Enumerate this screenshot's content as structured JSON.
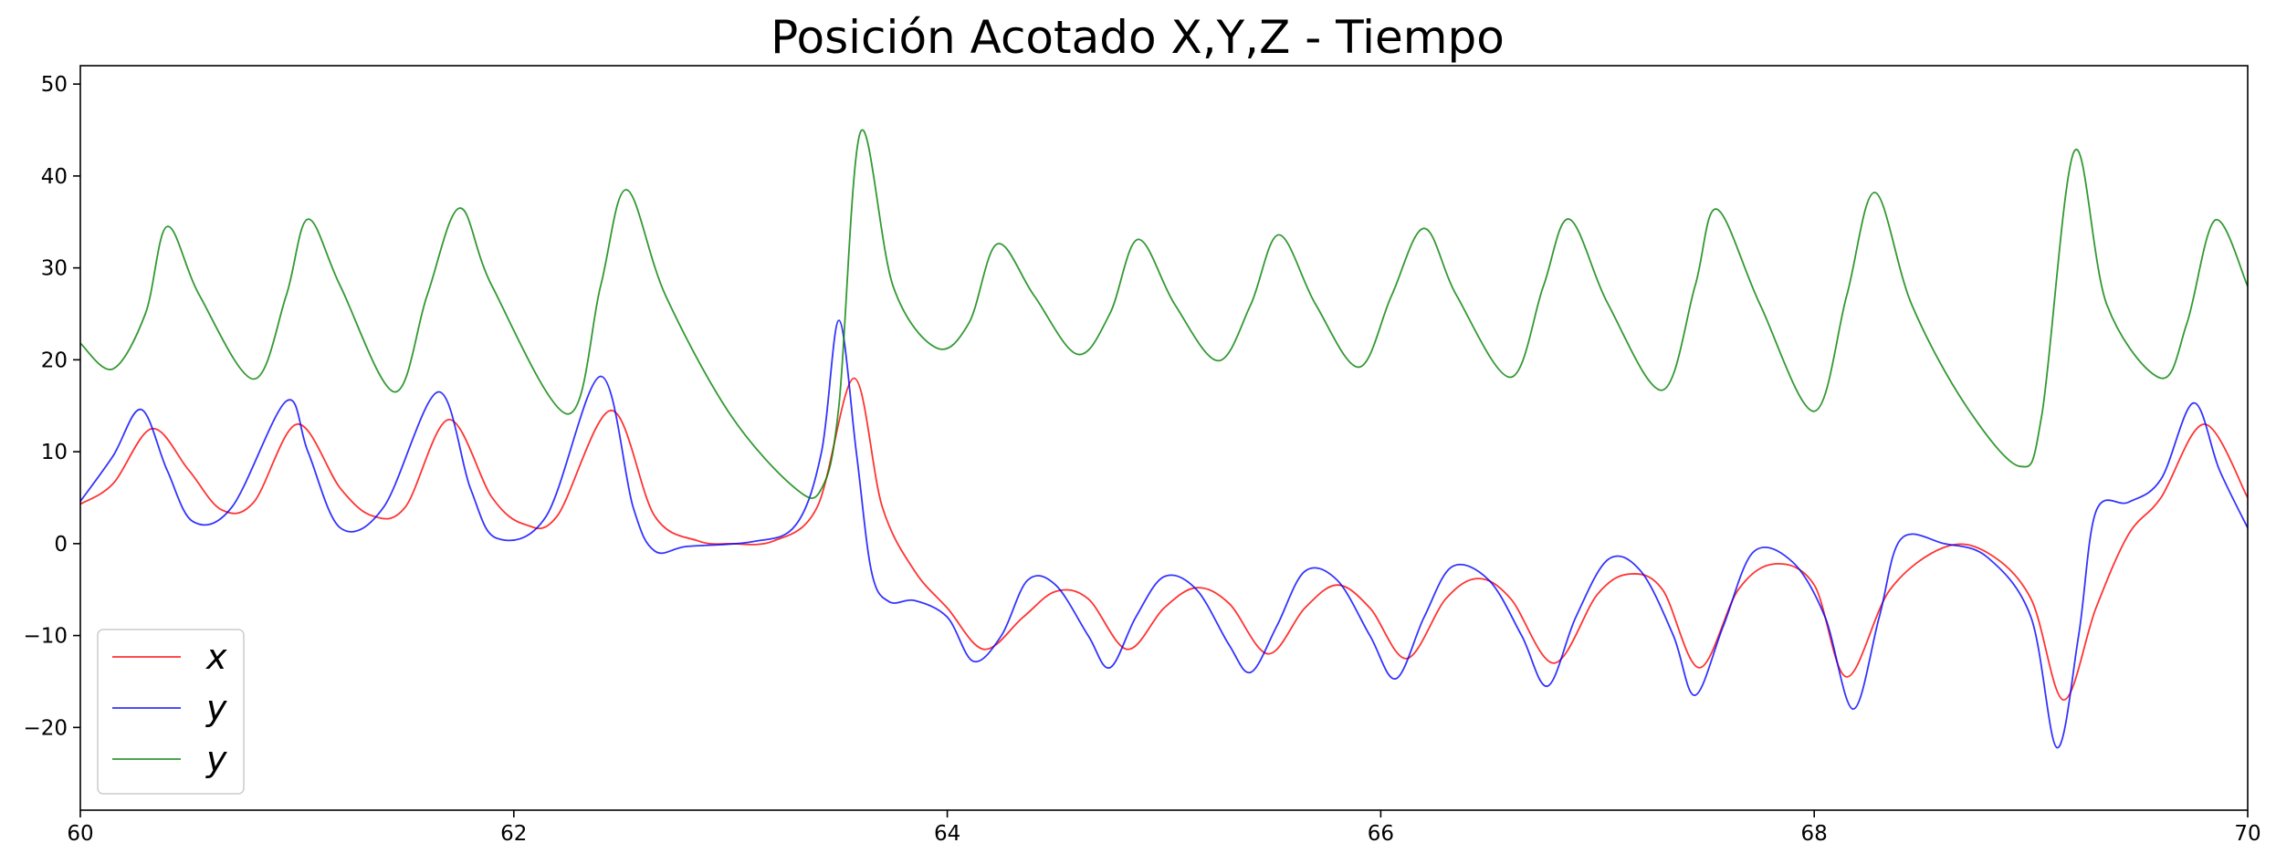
{
  "chart_data": {
    "type": "line",
    "title": "Posición Acotado X,Y,Z - Tiempo",
    "xlabel": "",
    "ylabel": "",
    "xlim": [
      60,
      70
    ],
    "ylim": [
      -29,
      52
    ],
    "xticks": [
      60,
      62,
      64,
      66,
      68,
      70
    ],
    "yticks": [
      -20,
      -10,
      0,
      10,
      20,
      30,
      40,
      50
    ],
    "xtick_labels": [
      "60",
      "62",
      "64",
      "66",
      "68",
      "70"
    ],
    "ytick_labels": [
      "−20",
      "−10",
      "0",
      "10",
      "20",
      "30",
      "40",
      "50"
    ],
    "grid": false,
    "legend_position": "lower-left",
    "series": [
      {
        "name": "x",
        "color": "#ff0000",
        "points": [
          [
            60,
            4.3
          ],
          [
            60.15,
            6.5
          ],
          [
            60.33,
            12.5
          ],
          [
            60.5,
            8
          ],
          [
            60.65,
            3.7
          ],
          [
            60.8,
            4.5
          ],
          [
            61.0,
            13
          ],
          [
            61.2,
            6
          ],
          [
            61.35,
            3.0
          ],
          [
            61.5,
            4
          ],
          [
            61.7,
            13.5
          ],
          [
            61.9,
            5
          ],
          [
            62.05,
            2.1
          ],
          [
            62.2,
            3
          ],
          [
            62.45,
            14.5
          ],
          [
            62.65,
            3
          ],
          [
            62.85,
            0.3
          ],
          [
            63.0,
            0
          ],
          [
            63.2,
            0.3
          ],
          [
            63.4,
            4
          ],
          [
            63.57,
            18
          ],
          [
            63.7,
            4
          ],
          [
            63.85,
            -3
          ],
          [
            64.0,
            -7
          ],
          [
            64.17,
            -11.5
          ],
          [
            64.35,
            -8
          ],
          [
            64.5,
            -5.2
          ],
          [
            64.65,
            -6
          ],
          [
            64.83,
            -11.5
          ],
          [
            65.0,
            -7
          ],
          [
            65.15,
            -4.8
          ],
          [
            65.3,
            -6.5
          ],
          [
            65.48,
            -12
          ],
          [
            65.65,
            -7
          ],
          [
            65.8,
            -4.5
          ],
          [
            65.95,
            -7
          ],
          [
            66.12,
            -12.5
          ],
          [
            66.3,
            -6
          ],
          [
            66.45,
            -3.8
          ],
          [
            66.6,
            -6
          ],
          [
            66.8,
            -13
          ],
          [
            67.0,
            -5.5
          ],
          [
            67.15,
            -3.3
          ],
          [
            67.3,
            -5
          ],
          [
            67.47,
            -13.5
          ],
          [
            67.65,
            -5
          ],
          [
            67.82,
            -2.2
          ],
          [
            68.0,
            -4.5
          ],
          [
            68.15,
            -14.5
          ],
          [
            68.35,
            -5
          ],
          [
            68.6,
            -0.4
          ],
          [
            68.8,
            -1
          ],
          [
            69.0,
            -6
          ],
          [
            69.15,
            -17
          ],
          [
            69.3,
            -7
          ],
          [
            69.45,
            1
          ],
          [
            69.6,
            5
          ],
          [
            69.8,
            13
          ],
          [
            70.0,
            5
          ]
        ]
      },
      {
        "name": "y",
        "color": "#0000ff",
        "points": [
          [
            60,
            4.6
          ],
          [
            60.15,
            9.5
          ],
          [
            60.28,
            14.6
          ],
          [
            60.4,
            8
          ],
          [
            60.52,
            2.4
          ],
          [
            60.7,
            4
          ],
          [
            60.95,
            15.5
          ],
          [
            61.05,
            10
          ],
          [
            61.2,
            1.7
          ],
          [
            61.4,
            4
          ],
          [
            61.65,
            16.5
          ],
          [
            61.8,
            6
          ],
          [
            61.92,
            0.6
          ],
          [
            62.15,
            3
          ],
          [
            62.4,
            18.2
          ],
          [
            62.55,
            4
          ],
          [
            62.65,
            -0.8
          ],
          [
            62.8,
            -0.3
          ],
          [
            63.1,
            0.2
          ],
          [
            63.3,
            2
          ],
          [
            63.42,
            10
          ],
          [
            63.5,
            24.3
          ],
          [
            63.58,
            10
          ],
          [
            63.65,
            -3
          ],
          [
            63.73,
            -6.3
          ],
          [
            63.85,
            -6.2
          ],
          [
            64.0,
            -8
          ],
          [
            64.12,
            -12.8
          ],
          [
            64.25,
            -10
          ],
          [
            64.37,
            -4
          ],
          [
            64.5,
            -4.5
          ],
          [
            64.65,
            -10
          ],
          [
            64.75,
            -13.5
          ],
          [
            64.87,
            -8
          ],
          [
            65.0,
            -3.6
          ],
          [
            65.15,
            -5
          ],
          [
            65.3,
            -11
          ],
          [
            65.4,
            -14
          ],
          [
            65.52,
            -9
          ],
          [
            65.65,
            -3
          ],
          [
            65.8,
            -4
          ],
          [
            65.95,
            -10
          ],
          [
            66.07,
            -14.7
          ],
          [
            66.2,
            -8
          ],
          [
            66.33,
            -2.5
          ],
          [
            66.5,
            -4
          ],
          [
            66.65,
            -10
          ],
          [
            66.77,
            -15.5
          ],
          [
            66.9,
            -8
          ],
          [
            67.05,
            -1.7
          ],
          [
            67.2,
            -3
          ],
          [
            67.35,
            -10
          ],
          [
            67.45,
            -16.5
          ],
          [
            67.58,
            -9
          ],
          [
            67.72,
            -0.9
          ],
          [
            67.9,
            -2
          ],
          [
            68.05,
            -8
          ],
          [
            68.18,
            -18
          ],
          [
            68.3,
            -8
          ],
          [
            68.4,
            0.5
          ],
          [
            68.6,
            0
          ],
          [
            68.8,
            -1.5
          ],
          [
            69.0,
            -8
          ],
          [
            69.12,
            -22.2
          ],
          [
            69.22,
            -10
          ],
          [
            69.3,
            3.5
          ],
          [
            69.45,
            4.5
          ],
          [
            69.6,
            7
          ],
          [
            69.75,
            15.3
          ],
          [
            69.87,
            8
          ],
          [
            70.0,
            1.7
          ]
        ]
      },
      {
        "name": "y",
        "color": "#008000",
        "points": [
          [
            60,
            21.8
          ],
          [
            60.15,
            19
          ],
          [
            60.3,
            25
          ],
          [
            60.4,
            34.5
          ],
          [
            60.55,
            27
          ],
          [
            60.8,
            17.9
          ],
          [
            60.95,
            27
          ],
          [
            61.05,
            35.3
          ],
          [
            61.2,
            28
          ],
          [
            61.45,
            16.5
          ],
          [
            61.6,
            27
          ],
          [
            61.75,
            36.5
          ],
          [
            61.9,
            28
          ],
          [
            62.25,
            14.1
          ],
          [
            62.4,
            28
          ],
          [
            62.52,
            38.5
          ],
          [
            62.7,
            27
          ],
          [
            63.0,
            14
          ],
          [
            63.3,
            6
          ],
          [
            63.42,
            6
          ],
          [
            63.5,
            15
          ],
          [
            63.6,
            44.8
          ],
          [
            63.75,
            28
          ],
          [
            63.95,
            21.3
          ],
          [
            64.1,
            24
          ],
          [
            64.23,
            32.6
          ],
          [
            64.4,
            27
          ],
          [
            64.6,
            20.6
          ],
          [
            64.75,
            25
          ],
          [
            64.88,
            33.1
          ],
          [
            65.05,
            26
          ],
          [
            65.25,
            19.9
          ],
          [
            65.4,
            26
          ],
          [
            65.53,
            33.6
          ],
          [
            65.7,
            26
          ],
          [
            65.9,
            19.2
          ],
          [
            66.05,
            27
          ],
          [
            66.2,
            34.3
          ],
          [
            66.35,
            27
          ],
          [
            66.6,
            18.1
          ],
          [
            66.75,
            28
          ],
          [
            66.87,
            35.3
          ],
          [
            67.05,
            26
          ],
          [
            67.3,
            16.7
          ],
          [
            67.45,
            28
          ],
          [
            67.55,
            36.4
          ],
          [
            67.75,
            26
          ],
          [
            68.0,
            14.4
          ],
          [
            68.15,
            27
          ],
          [
            68.28,
            38.2
          ],
          [
            68.45,
            26
          ],
          [
            68.7,
            15
          ],
          [
            68.95,
            8.4
          ],
          [
            69.05,
            14
          ],
          [
            69.2,
            42.7
          ],
          [
            69.35,
            26
          ],
          [
            69.6,
            18
          ],
          [
            69.72,
            24
          ],
          [
            69.85,
            35.2
          ],
          [
            70.0,
            28
          ]
        ]
      }
    ]
  }
}
